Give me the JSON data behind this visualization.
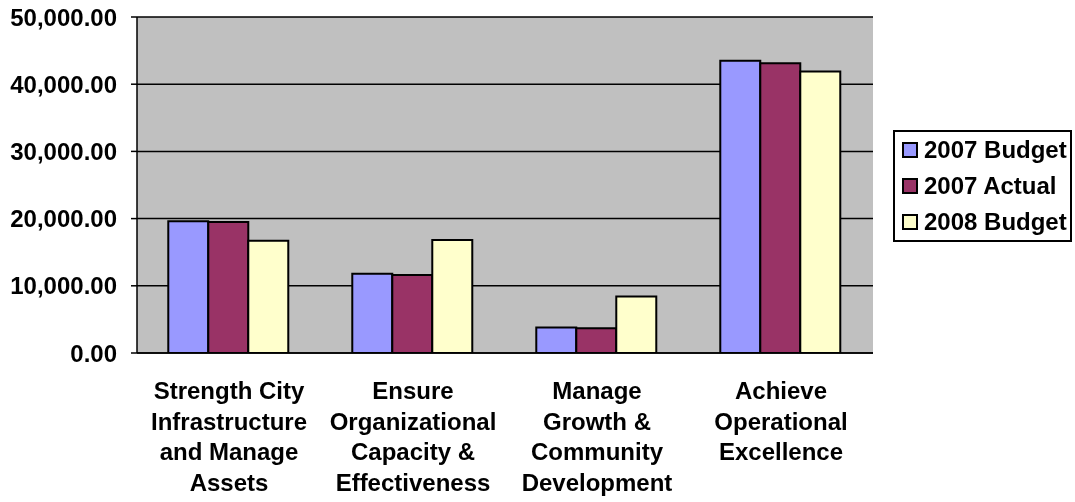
{
  "chart_data": {
    "type": "bar",
    "categories": [
      "Strength City Infrastructure and Manage Assets",
      "Ensure Organizational Capacity & Effectiveness",
      "Manage Growth & Community Development",
      "Achieve Operational Excellence"
    ],
    "series": [
      {
        "name": "2007 Budget",
        "color": "#9999ff",
        "values": [
          19600,
          11800,
          3800,
          43500
        ]
      },
      {
        "name": "2007 Actual",
        "color": "#993366",
        "values": [
          19500,
          11600,
          3700,
          43100
        ]
      },
      {
        "name": "2008 Budget",
        "color": "#ffffcc",
        "values": [
          16700,
          16800,
          8400,
          41900
        ]
      }
    ],
    "ylim": [
      0,
      50000
    ],
    "yticks": [
      {
        "value": 0,
        "label": "0.00"
      },
      {
        "value": 10000,
        "label": "10,000.00"
      },
      {
        "value": 20000,
        "label": "20,000.00"
      },
      {
        "value": 30000,
        "label": "30,000.00"
      },
      {
        "value": 40000,
        "label": "40,000.00"
      },
      {
        "value": 50000,
        "label": "50,000.00"
      }
    ],
    "grid": "y",
    "legend": "right"
  }
}
